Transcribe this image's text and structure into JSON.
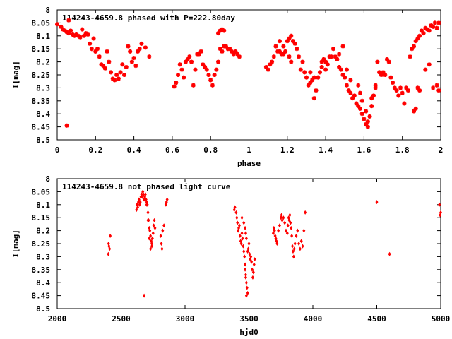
{
  "chart_data": [
    {
      "type": "scatter",
      "title": "114243-4659.8 phased with P=222.80day",
      "xlabel": "phase",
      "ylabel": "I[mag]",
      "xlim": [
        0,
        2
      ],
      "ylim": [
        8.5,
        8
      ],
      "y_reversed": true,
      "xticks": [
        0,
        0.2,
        0.4,
        0.6,
        0.8,
        1,
        1.2,
        1.4,
        1.6,
        1.8,
        2
      ],
      "xtick_labels": [
        "0",
        "0.2",
        "0.4",
        "0.6",
        "0.8",
        "1",
        "1.2",
        "1.4",
        "1.6",
        "1.8",
        "2"
      ],
      "yticks": [
        8,
        8.05,
        8.1,
        8.15,
        8.2,
        8.25,
        8.3,
        8.35,
        8.4,
        8.45,
        8.5
      ],
      "ytick_labels": [
        "8",
        "8.05",
        "8.1",
        "8.15",
        "8.2",
        "8.25",
        "8.3",
        "8.35",
        "8.4",
        "8.45",
        "8.5"
      ],
      "grid": false,
      "marker_color": "#ff0000",
      "points": [
        [
          0.0,
          8.055
        ],
        [
          0.02,
          8.065
        ],
        [
          0.03,
          8.075
        ],
        [
          0.04,
          8.08
        ],
        [
          0.05,
          8.085
        ],
        [
          0.06,
          8.09
        ],
        [
          0.07,
          8.08
        ],
        [
          0.08,
          8.095
        ],
        [
          0.09,
          8.1
        ],
        [
          0.1,
          8.095
        ],
        [
          0.11,
          8.1
        ],
        [
          0.12,
          8.105
        ],
        [
          0.13,
          8.075
        ],
        [
          0.14,
          8.1
        ],
        [
          0.15,
          8.09
        ],
        [
          0.16,
          8.095
        ],
        [
          0.17,
          8.13
        ],
        [
          0.18,
          8.15
        ],
        [
          0.19,
          8.11
        ],
        [
          0.2,
          8.16
        ],
        [
          0.21,
          8.15
        ],
        [
          0.22,
          8.18
        ],
        [
          0.23,
          8.21
        ],
        [
          0.24,
          8.215
        ],
        [
          0.25,
          8.225
        ],
        [
          0.26,
          8.16
        ],
        [
          0.27,
          8.2
        ],
        [
          0.28,
          8.24
        ],
        [
          0.29,
          8.265
        ],
        [
          0.3,
          8.27
        ],
        [
          0.31,
          8.25
        ],
        [
          0.32,
          8.265
        ],
        [
          0.33,
          8.24
        ],
        [
          0.34,
          8.21
        ],
        [
          0.35,
          8.25
        ],
        [
          0.36,
          8.22
        ],
        [
          0.37,
          8.14
        ],
        [
          0.38,
          8.16
        ],
        [
          0.39,
          8.2
        ],
        [
          0.4,
          8.185
        ],
        [
          0.41,
          8.215
        ],
        [
          0.42,
          8.16
        ],
        [
          0.43,
          8.15
        ],
        [
          0.44,
          8.13
        ],
        [
          0.46,
          8.145
        ],
        [
          0.48,
          8.18
        ],
        [
          0.05,
          8.445
        ],
        [
          0.06,
          8.04
        ],
        [
          0.61,
          8.295
        ],
        [
          0.62,
          8.28
        ],
        [
          0.63,
          8.25
        ],
        [
          0.64,
          8.21
        ],
        [
          0.65,
          8.23
        ],
        [
          0.66,
          8.26
        ],
        [
          0.67,
          8.2
        ],
        [
          0.68,
          8.19
        ],
        [
          0.69,
          8.18
        ],
        [
          0.7,
          8.2
        ],
        [
          0.71,
          8.29
        ],
        [
          0.72,
          8.23
        ],
        [
          0.73,
          8.17
        ],
        [
          0.74,
          8.17
        ],
        [
          0.75,
          8.16
        ],
        [
          0.76,
          8.21
        ],
        [
          0.77,
          8.22
        ],
        [
          0.78,
          8.23
        ],
        [
          0.79,
          8.25
        ],
        [
          0.8,
          8.27
        ],
        [
          0.81,
          8.29
        ],
        [
          0.82,
          8.25
        ],
        [
          0.83,
          8.23
        ],
        [
          0.84,
          8.2
        ],
        [
          0.85,
          8.15
        ],
        [
          0.86,
          8.16
        ],
        [
          0.87,
          8.14
        ],
        [
          0.88,
          8.14
        ],
        [
          0.89,
          8.15
        ],
        [
          0.9,
          8.15
        ],
        [
          0.91,
          8.16
        ],
        [
          0.92,
          8.17
        ],
        [
          0.93,
          8.16
        ],
        [
          0.94,
          8.17
        ],
        [
          0.95,
          8.18
        ],
        [
          0.84,
          8.09
        ],
        [
          0.85,
          8.08
        ],
        [
          0.86,
          8.075
        ],
        [
          0.87,
          8.08
        ],
        [
          1.09,
          8.22
        ],
        [
          1.1,
          8.23
        ],
        [
          1.11,
          8.21
        ],
        [
          1.12,
          8.2
        ],
        [
          1.13,
          8.18
        ],
        [
          1.14,
          8.14
        ],
        [
          1.15,
          8.16
        ],
        [
          1.16,
          8.16
        ],
        [
          1.17,
          8.17
        ],
        [
          1.18,
          8.17
        ],
        [
          1.19,
          8.16
        ],
        [
          1.2,
          8.12
        ],
        [
          1.21,
          8.11
        ],
        [
          1.22,
          8.1
        ],
        [
          1.23,
          8.12
        ],
        [
          1.24,
          8.13
        ],
        [
          1.25,
          8.15
        ],
        [
          1.26,
          8.18
        ],
        [
          1.27,
          8.23
        ],
        [
          1.28,
          8.2
        ],
        [
          1.29,
          8.24
        ],
        [
          1.3,
          8.26
        ],
        [
          1.31,
          8.29
        ],
        [
          1.32,
          8.28
        ],
        [
          1.33,
          8.27
        ],
        [
          1.34,
          8.34
        ],
        [
          1.35,
          8.31
        ],
        [
          1.36,
          8.26
        ],
        [
          1.37,
          8.24
        ],
        [
          1.38,
          8.2
        ],
        [
          1.39,
          8.19
        ],
        [
          1.4,
          8.2
        ],
        [
          1.41,
          8.21
        ],
        [
          1.42,
          8.18
        ],
        [
          1.43,
          8.18
        ],
        [
          1.44,
          8.15
        ],
        [
          1.45,
          8.18
        ],
        [
          1.46,
          8.19
        ],
        [
          1.47,
          8.22
        ],
        [
          1.48,
          8.23
        ],
        [
          1.49,
          8.25
        ],
        [
          1.5,
          8.26
        ],
        [
          1.51,
          8.29
        ],
        [
          1.52,
          8.31
        ],
        [
          1.53,
          8.32
        ],
        [
          1.54,
          8.34
        ],
        [
          1.55,
          8.33
        ],
        [
          1.56,
          8.36
        ],
        [
          1.57,
          8.37
        ],
        [
          1.58,
          8.38
        ],
        [
          1.59,
          8.4
        ],
        [
          1.6,
          8.42
        ],
        [
          1.61,
          8.44
        ],
        [
          1.62,
          8.45
        ],
        [
          1.63,
          8.41
        ],
        [
          1.64,
          8.37
        ],
        [
          1.65,
          8.33
        ],
        [
          1.66,
          8.29
        ],
        [
          1.67,
          8.2
        ],
        [
          1.68,
          8.24
        ],
        [
          1.69,
          8.25
        ],
        [
          1.7,
          8.24
        ],
        [
          1.71,
          8.25
        ],
        [
          1.72,
          8.19
        ],
        [
          1.73,
          8.2
        ],
        [
          1.74,
          8.26
        ],
        [
          1.75,
          8.28
        ],
        [
          1.76,
          8.3
        ],
        [
          1.77,
          8.31
        ],
        [
          1.78,
          8.33
        ],
        [
          1.79,
          8.3
        ],
        [
          1.8,
          8.32
        ],
        [
          1.81,
          8.36
        ],
        [
          1.82,
          8.3
        ],
        [
          1.83,
          8.31
        ],
        [
          1.84,
          8.18
        ],
        [
          1.85,
          8.15
        ],
        [
          1.86,
          8.14
        ],
        [
          1.87,
          8.12
        ],
        [
          1.88,
          8.11
        ],
        [
          1.89,
          8.1
        ],
        [
          1.9,
          8.08
        ],
        [
          1.91,
          8.09
        ],
        [
          1.92,
          8.07
        ],
        [
          1.93,
          8.075
        ],
        [
          1.94,
          8.08
        ],
        [
          1.95,
          8.06
        ],
        [
          1.96,
          8.065
        ],
        [
          1.97,
          8.05
        ],
        [
          1.98,
          8.07
        ],
        [
          1.99,
          8.05
        ],
        [
          1.86,
          8.39
        ],
        [
          1.87,
          8.38
        ],
        [
          1.88,
          8.3
        ],
        [
          1.89,
          8.31
        ],
        [
          1.92,
          8.23
        ],
        [
          1.94,
          8.21
        ],
        [
          1.96,
          8.3
        ],
        [
          1.98,
          8.29
        ],
        [
          1.99,
          8.31
        ],
        [
          1.38,
          8.22
        ],
        [
          1.4,
          8.23
        ],
        [
          1.32,
          8.24
        ],
        [
          1.34,
          8.26
        ],
        [
          1.16,
          8.12
        ],
        [
          1.18,
          8.14
        ],
        [
          1.21,
          8.18
        ],
        [
          1.22,
          8.2
        ],
        [
          1.47,
          8.17
        ],
        [
          1.49,
          8.14
        ],
        [
          1.51,
          8.23
        ],
        [
          1.53,
          8.27
        ],
        [
          1.57,
          8.29
        ],
        [
          1.58,
          8.32
        ],
        [
          1.59,
          8.35
        ],
        [
          1.61,
          8.39
        ],
        [
          1.62,
          8.43
        ],
        [
          1.64,
          8.34
        ],
        [
          1.66,
          8.3
        ]
      ]
    },
    {
      "type": "scatter",
      "title": "114243-4659.8 not phased light curve",
      "xlabel": "hjd0",
      "ylabel": "I[mag]",
      "xlim": [
        2000,
        5000
      ],
      "ylim": [
        8.5,
        8
      ],
      "y_reversed": true,
      "xticks": [
        2000,
        2500,
        3000,
        3500,
        4000,
        4500,
        5000
      ],
      "xtick_labels": [
        "2000",
        "2500",
        "3000",
        "3500",
        "4000",
        "4500",
        "5000"
      ],
      "yticks": [
        8,
        8.05,
        8.1,
        8.15,
        8.2,
        8.25,
        8.3,
        8.35,
        8.4,
        8.45,
        8.5
      ],
      "ytick_labels": [
        "8",
        "8.05",
        "8.1",
        "8.15",
        "8.2",
        "8.25",
        "8.3",
        "8.35",
        "8.4",
        "8.45",
        "8.5"
      ],
      "grid": false,
      "marker_color": "#ff0000",
      "points": [
        [
          2400,
          8.29
        ],
        [
          2402,
          8.25
        ],
        [
          2405,
          8.26
        ],
        [
          2410,
          8.27
        ],
        [
          2415,
          8.22
        ],
        [
          2620,
          8.12
        ],
        [
          2625,
          8.1
        ],
        [
          2630,
          8.11
        ],
        [
          2635,
          8.09
        ],
        [
          2640,
          8.08
        ],
        [
          2645,
          8.1
        ],
        [
          2650,
          8.09
        ],
        [
          2655,
          8.07
        ],
        [
          2660,
          8.06
        ],
        [
          2665,
          8.07
        ],
        [
          2670,
          8.05
        ],
        [
          2675,
          8.06
        ],
        [
          2680,
          8.08
        ],
        [
          2685,
          8.07
        ],
        [
          2690,
          8.06
        ],
        [
          2695,
          8.08
        ],
        [
          2700,
          8.09
        ],
        [
          2705,
          8.1
        ],
        [
          2710,
          8.13
        ],
        [
          2715,
          8.16
        ],
        [
          2720,
          8.19
        ],
        [
          2725,
          8.2
        ],
        [
          2730,
          8.22
        ],
        [
          2735,
          8.24
        ],
        [
          2740,
          8.26
        ],
        [
          2745,
          8.23
        ],
        [
          2750,
          8.21
        ],
        [
          2755,
          8.18
        ],
        [
          2760,
          8.16
        ],
        [
          2765,
          8.19
        ],
        [
          2680,
          8.45
        ],
        [
          2690,
          8.08
        ],
        [
          2700,
          8.1
        ],
        [
          2710,
          8.16
        ],
        [
          2720,
          8.23
        ],
        [
          2730,
          8.27
        ],
        [
          2740,
          8.25
        ],
        [
          2810,
          8.22
        ],
        [
          2815,
          8.25
        ],
        [
          2820,
          8.27
        ],
        [
          2825,
          8.2
        ],
        [
          2835,
          8.18
        ],
        [
          2850,
          8.1
        ],
        [
          2855,
          8.09
        ],
        [
          2860,
          8.08
        ],
        [
          3385,
          8.12
        ],
        [
          3390,
          8.11
        ],
        [
          3400,
          8.13
        ],
        [
          3405,
          8.15
        ],
        [
          3410,
          8.17
        ],
        [
          3415,
          8.2
        ],
        [
          3420,
          8.19
        ],
        [
          3425,
          8.18
        ],
        [
          3430,
          8.22
        ],
        [
          3435,
          8.24
        ],
        [
          3440,
          8.25
        ],
        [
          3445,
          8.21
        ],
        [
          3450,
          8.23
        ],
        [
          3455,
          8.26
        ],
        [
          3460,
          8.28
        ],
        [
          3465,
          8.3
        ],
        [
          3470,
          8.35
        ],
        [
          3475,
          8.37
        ],
        [
          3480,
          8.4
        ],
        [
          3485,
          8.42
        ],
        [
          3490,
          8.44
        ],
        [
          3480,
          8.45
        ],
        [
          3475,
          8.38
        ],
        [
          3470,
          8.33
        ],
        [
          3490,
          8.28
        ],
        [
          3495,
          8.27
        ],
        [
          3500,
          8.25
        ],
        [
          3505,
          8.29
        ],
        [
          3510,
          8.31
        ],
        [
          3515,
          8.3
        ],
        [
          3520,
          8.32
        ],
        [
          3525,
          8.35
        ],
        [
          3530,
          8.38
        ],
        [
          3535,
          8.36
        ],
        [
          3540,
          8.33
        ],
        [
          3545,
          8.31
        ],
        [
          3470,
          8.19
        ],
        [
          3475,
          8.21
        ],
        [
          3480,
          8.23
        ],
        [
          3460,
          8.17
        ],
        [
          3445,
          8.15
        ],
        [
          3690,
          8.21
        ],
        [
          3695,
          8.19
        ],
        [
          3700,
          8.2
        ],
        [
          3705,
          8.22
        ],
        [
          3710,
          8.23
        ],
        [
          3715,
          8.24
        ],
        [
          3720,
          8.25
        ],
        [
          3730,
          8.2
        ],
        [
          3740,
          8.18
        ],
        [
          3750,
          8.15
        ],
        [
          3755,
          8.14
        ],
        [
          3760,
          8.16
        ],
        [
          3770,
          8.15
        ],
        [
          3780,
          8.17
        ],
        [
          3790,
          8.2
        ],
        [
          3800,
          8.21
        ],
        [
          3805,
          8.18
        ],
        [
          3810,
          8.15
        ],
        [
          3815,
          8.16
        ],
        [
          3820,
          8.14
        ],
        [
          3825,
          8.17
        ],
        [
          3830,
          8.19
        ],
        [
          3835,
          8.22
        ],
        [
          3840,
          8.26
        ],
        [
          3845,
          8.28
        ],
        [
          3850,
          8.3
        ],
        [
          3855,
          8.27
        ],
        [
          3860,
          8.25
        ],
        [
          3870,
          8.22
        ],
        [
          3880,
          8.2
        ],
        [
          3890,
          8.25
        ],
        [
          3900,
          8.27
        ],
        [
          3910,
          8.24
        ],
        [
          3920,
          8.26
        ],
        [
          3930,
          8.2
        ],
        [
          3940,
          8.13
        ],
        [
          4500,
          8.09
        ],
        [
          4600,
          8.29
        ],
        [
          4990,
          8.1
        ],
        [
          4995,
          8.14
        ],
        [
          5000,
          8.13
        ]
      ]
    }
  ]
}
